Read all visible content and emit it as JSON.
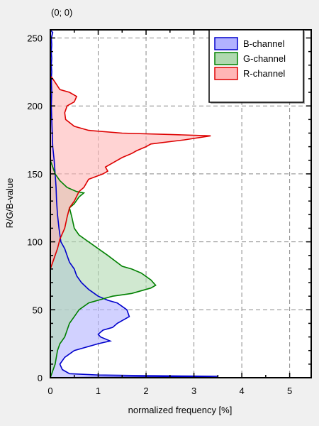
{
  "coordinate_readout": "(0; 0)",
  "chart_data": {
    "type": "area",
    "title": "",
    "xlabel": "normalized frequency [%]",
    "ylabel": "R/G/B-value",
    "xlim": [
      0,
      5.45
    ],
    "ylim": [
      0,
      256
    ],
    "x_ticks": [
      "0",
      "1",
      "2",
      "3",
      "4",
      "5"
    ],
    "y_ticks": [
      "0",
      "50",
      "100",
      "150",
      "200",
      "250"
    ],
    "grid": true,
    "legend_position": "top-right",
    "orientation": "horizontal",
    "series": [
      {
        "name": "B-channel",
        "color": "#0000cc",
        "fill": "#b2b2ff",
        "points": [
          [
            0,
            256
          ],
          [
            0.05,
            254
          ],
          [
            0.02,
            250
          ],
          [
            0.03,
            245
          ],
          [
            0.02,
            240
          ],
          [
            0.03,
            235
          ],
          [
            0.02,
            230
          ],
          [
            0.03,
            225
          ],
          [
            0.02,
            220
          ],
          [
            0.03,
            210
          ],
          [
            0.02,
            200
          ],
          [
            0.03,
            190
          ],
          [
            0.04,
            180
          ],
          [
            0.05,
            170
          ],
          [
            0.08,
            160
          ],
          [
            0.1,
            150
          ],
          [
            0.12,
            140
          ],
          [
            0.13,
            130
          ],
          [
            0.15,
            120
          ],
          [
            0.18,
            110
          ],
          [
            0.22,
            100
          ],
          [
            0.3,
            95
          ],
          [
            0.35,
            90
          ],
          [
            0.4,
            85
          ],
          [
            0.5,
            80
          ],
          [
            0.55,
            75
          ],
          [
            0.65,
            70
          ],
          [
            0.8,
            65
          ],
          [
            1.0,
            60
          ],
          [
            1.2,
            57
          ],
          [
            1.4,
            55
          ],
          [
            1.6,
            50
          ],
          [
            1.65,
            45
          ],
          [
            1.5,
            42
          ],
          [
            1.4,
            40
          ],
          [
            1.3,
            37
          ],
          [
            1.1,
            35
          ],
          [
            1.0,
            32
          ],
          [
            1.05,
            30
          ],
          [
            1.25,
            27
          ],
          [
            1.0,
            25
          ],
          [
            0.7,
            22
          ],
          [
            0.5,
            20
          ],
          [
            0.3,
            15
          ],
          [
            0.2,
            10
          ],
          [
            0.25,
            6
          ],
          [
            0.4,
            3
          ],
          [
            1.0,
            2
          ],
          [
            2.0,
            1.5
          ],
          [
            3.0,
            1.2
          ],
          [
            3.5,
            1
          ],
          [
            0,
            0
          ]
        ]
      },
      {
        "name": "G-channel",
        "color": "#008000",
        "fill": "#b0d9b0",
        "points": [
          [
            0,
            160
          ],
          [
            0.05,
            155
          ],
          [
            0.1,
            150
          ],
          [
            0.2,
            145
          ],
          [
            0.35,
            140
          ],
          [
            0.55,
            137
          ],
          [
            0.7,
            136
          ],
          [
            0.6,
            133
          ],
          [
            0.5,
            128
          ],
          [
            0.4,
            125
          ],
          [
            0.45,
            118
          ],
          [
            0.5,
            110
          ],
          [
            0.6,
            105
          ],
          [
            0.8,
            100
          ],
          [
            1.0,
            95
          ],
          [
            1.2,
            90
          ],
          [
            1.5,
            82
          ],
          [
            1.7,
            80
          ],
          [
            1.9,
            77
          ],
          [
            2.1,
            72
          ],
          [
            2.2,
            68
          ],
          [
            2.1,
            66
          ],
          [
            1.7,
            62
          ],
          [
            1.3,
            60
          ],
          [
            1.0,
            57
          ],
          [
            0.8,
            55
          ],
          [
            0.6,
            50
          ],
          [
            0.5,
            45
          ],
          [
            0.4,
            40
          ],
          [
            0.3,
            30
          ],
          [
            0.2,
            25
          ],
          [
            0.15,
            20
          ],
          [
            0.1,
            10
          ],
          [
            0.05,
            5
          ],
          [
            0,
            0
          ]
        ]
      },
      {
        "name": "R-channel",
        "color": "#dd0000",
        "fill": "#ffb6b6",
        "points": [
          [
            0,
            222
          ],
          [
            0.05,
            220
          ],
          [
            0.2,
            212
          ],
          [
            0.4,
            210
          ],
          [
            0.55,
            207
          ],
          [
            0.5,
            203
          ],
          [
            0.35,
            200
          ],
          [
            0.3,
            195
          ],
          [
            0.32,
            190
          ],
          [
            0.5,
            185
          ],
          [
            0.8,
            182
          ],
          [
            1.5,
            180
          ],
          [
            2.5,
            179
          ],
          [
            3.35,
            178
          ],
          [
            2.8,
            175
          ],
          [
            2.1,
            172
          ],
          [
            2.0,
            170
          ],
          [
            1.8,
            167
          ],
          [
            1.7,
            165
          ],
          [
            1.5,
            162
          ],
          [
            1.3,
            158
          ],
          [
            1.15,
            155
          ],
          [
            1.2,
            152
          ],
          [
            1.1,
            150
          ],
          [
            0.95,
            148
          ],
          [
            0.8,
            146
          ],
          [
            0.75,
            143
          ],
          [
            0.7,
            140
          ],
          [
            0.6,
            137
          ],
          [
            0.5,
            130
          ],
          [
            0.4,
            125
          ],
          [
            0.35,
            118
          ],
          [
            0.3,
            110
          ],
          [
            0.2,
            102
          ],
          [
            0.15,
            95
          ],
          [
            0.05,
            85
          ],
          [
            0,
            80
          ]
        ]
      }
    ]
  }
}
